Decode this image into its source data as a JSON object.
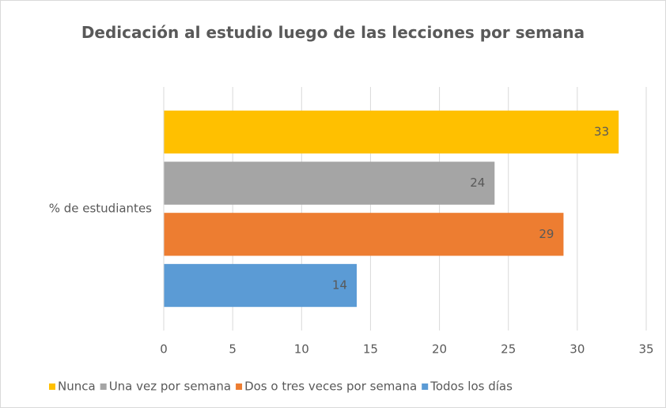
{
  "chart_data": {
    "type": "bar",
    "orientation": "horizontal",
    "title": "Dedicación al estudio luego de las lecciones por semana",
    "categories": [
      "% de estudiantes"
    ],
    "series": [
      {
        "name": "Nunca",
        "color": "#ffc000",
        "values": [
          33
        ]
      },
      {
        "name": "Una vez por semana",
        "color": "#a5a5a5",
        "values": [
          24
        ]
      },
      {
        "name": "Dos o tres veces por semana",
        "color": "#ed7d31",
        "values": [
          29
        ]
      },
      {
        "name": "Todos los días",
        "color": "#5b9bd5",
        "values": [
          14
        ]
      }
    ],
    "xlim": [
      0,
      35
    ],
    "xticks": [
      0,
      5,
      10,
      15,
      20,
      25,
      30,
      35
    ],
    "grid": true,
    "legend": "bottom"
  }
}
